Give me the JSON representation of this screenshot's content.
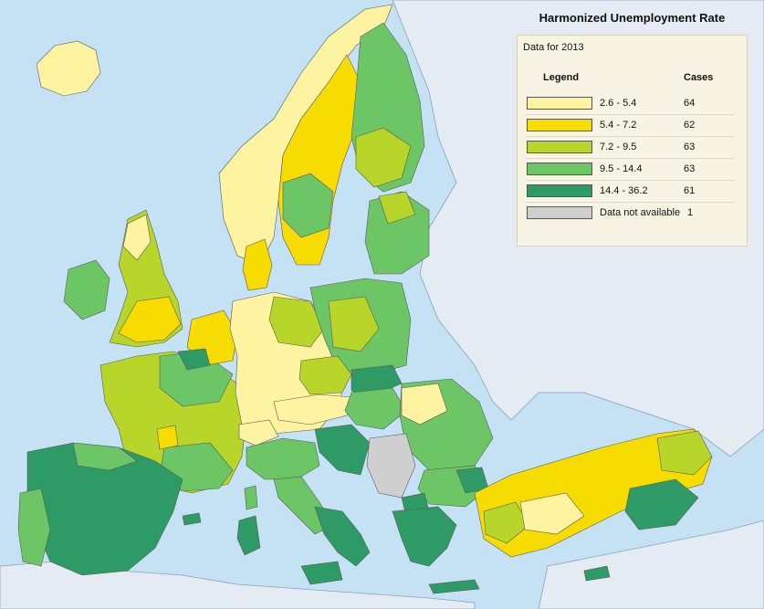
{
  "legend": {
    "title": "Harmonized Unemployment Rate",
    "subtitle": "Data for 2013",
    "header_legend": "Legend",
    "header_cases": "Cases",
    "classes": [
      {
        "range": "2.6 - 5.4",
        "cases": "64",
        "color": "#fdf3a0"
      },
      {
        "range": "5.4 - 7.2",
        "cases": "62",
        "color": "#f7dc00"
      },
      {
        "range": "7.2 - 9.5",
        "cases": "63",
        "color": "#b8d62a"
      },
      {
        "range": "9.5 - 14.4",
        "cases": "63",
        "color": "#6cc666"
      },
      {
        "range": "14.4 - 36.2",
        "cases": "61",
        "color": "#2e9a66"
      },
      {
        "range": "Data not available",
        "cases": "1",
        "color": "#cfcfcf"
      }
    ]
  },
  "colors": {
    "sea": "#c5e2f5",
    "non_eu_land": "#e4ebf2",
    "border": "#5a5a5a"
  }
}
